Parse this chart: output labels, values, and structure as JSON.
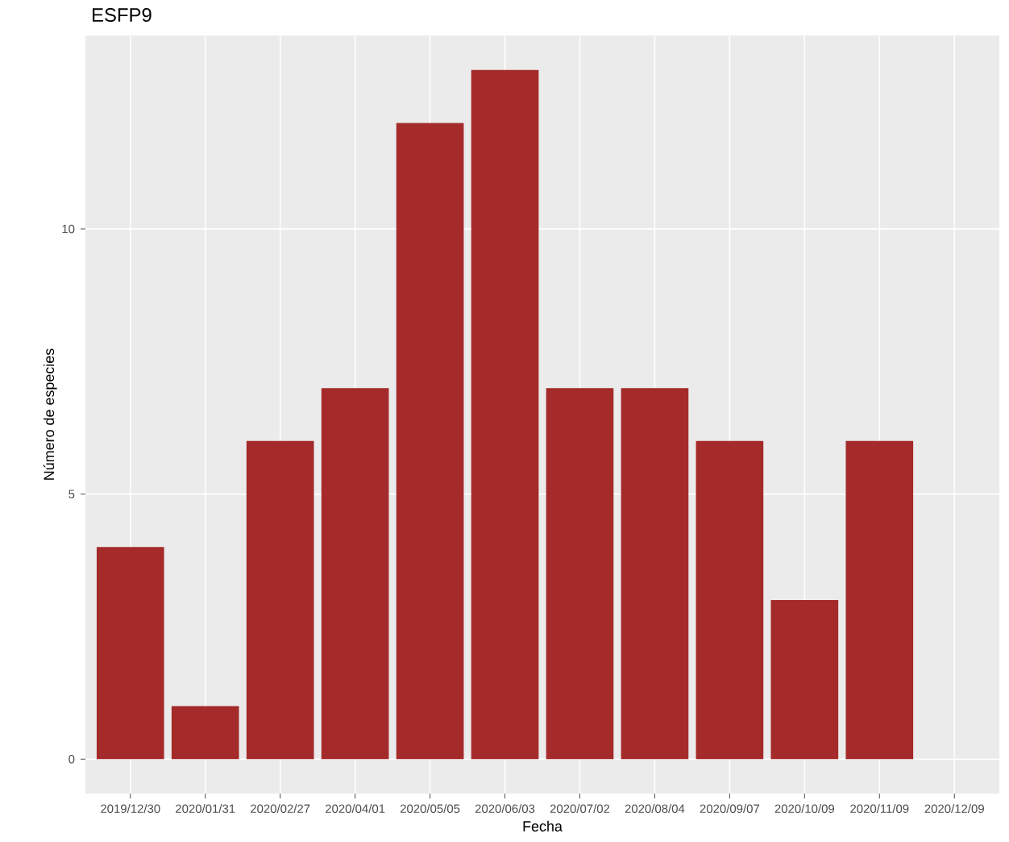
{
  "chart_data": {
    "type": "bar",
    "title": "ESFP9",
    "xlabel": "Fecha",
    "ylabel": "Número de especies",
    "categories": [
      "2019/12/30",
      "2020/01/31",
      "2020/02/27",
      "2020/04/01",
      "2020/05/05",
      "2020/06/03",
      "2020/07/02",
      "2020/08/04",
      "2020/09/07",
      "2020/10/09",
      "2020/11/09",
      "2020/12/09"
    ],
    "values": [
      4,
      1,
      6,
      7,
      12,
      13,
      7,
      7,
      6,
      3,
      6,
      null
    ],
    "color": "#a52a2a",
    "ylim": [
      -0.65,
      13.65
    ],
    "yticks": [
      0,
      5,
      10
    ],
    "grid": true
  }
}
